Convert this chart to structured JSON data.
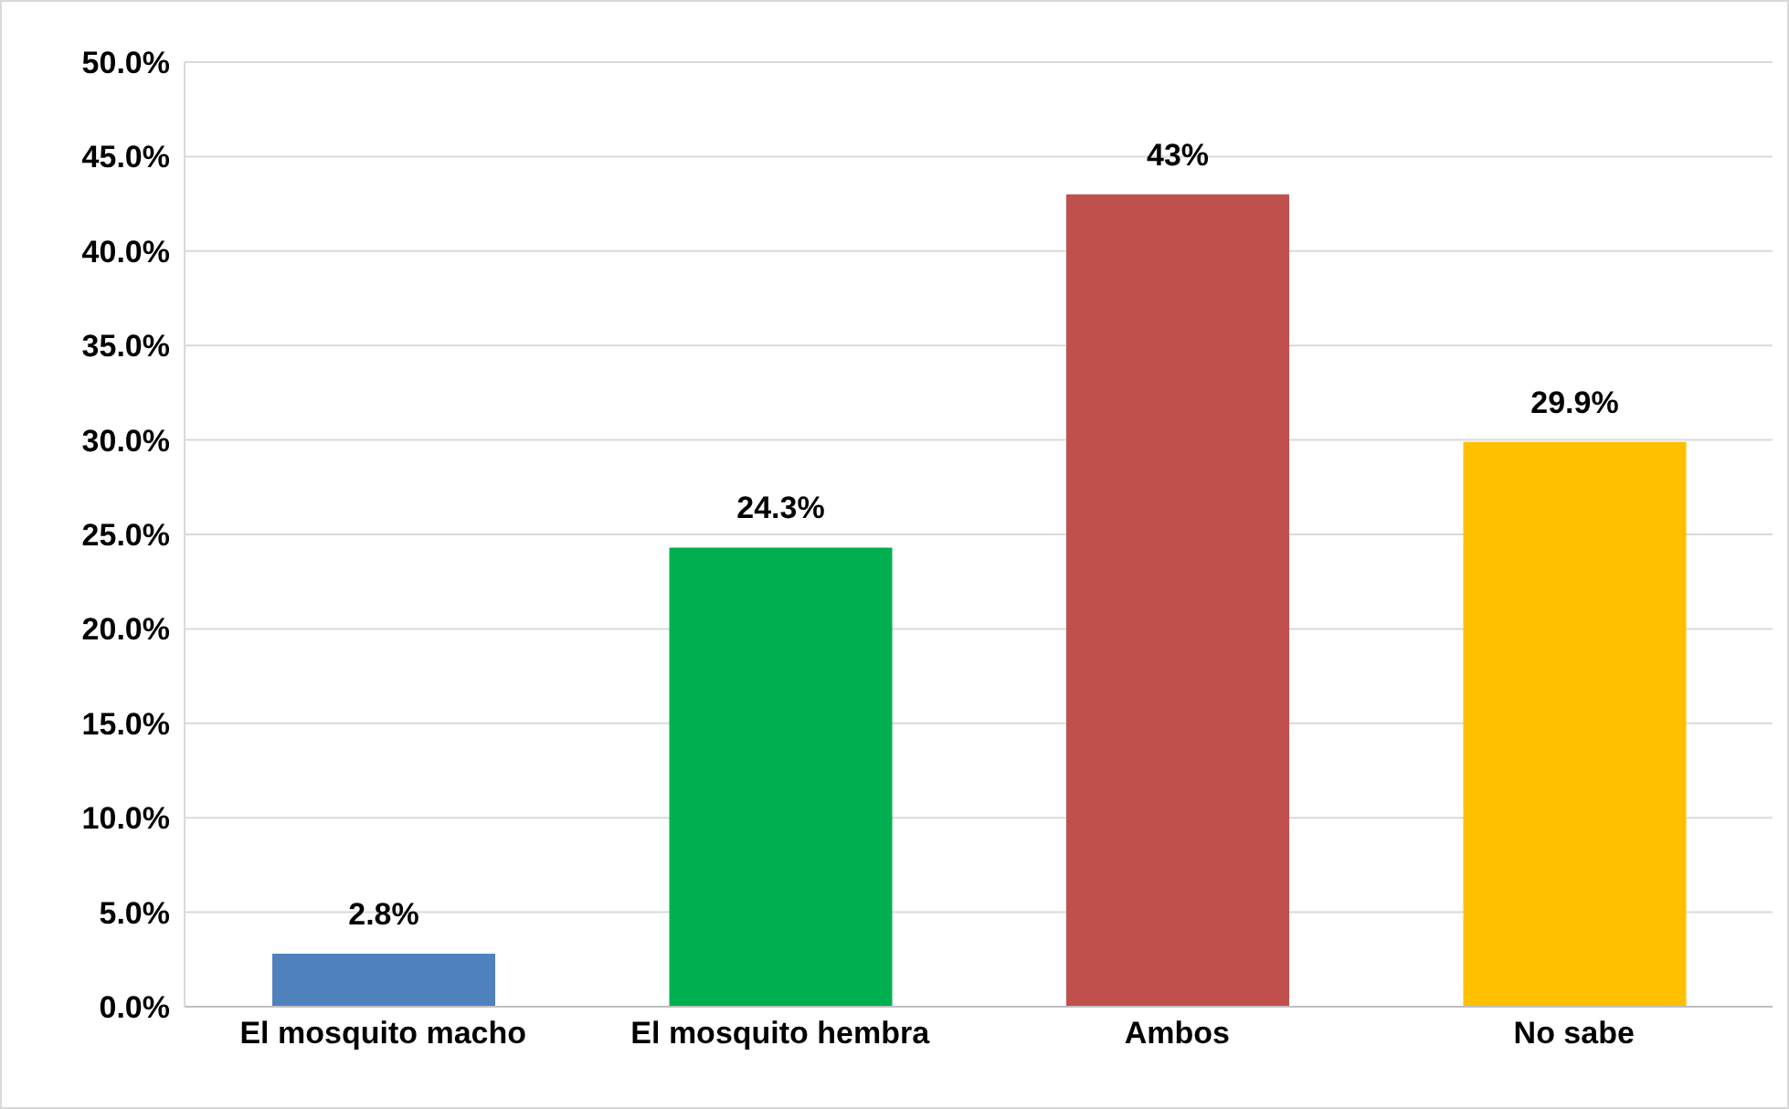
{
  "chart_data": {
    "type": "bar",
    "categories": [
      "El mosquito macho",
      "El mosquito hembra",
      "Ambos",
      "No sabe"
    ],
    "values": [
      2.8,
      24.3,
      43,
      29.9
    ],
    "colors": [
      "#4f81bd",
      "#00b050",
      "#c0504d",
      "#ffc000"
    ],
    "value_labels": [
      "2.8%",
      "24.3%",
      "43%",
      "29.9%"
    ],
    "ylim": [
      0,
      50
    ],
    "yticks": [
      {
        "value": 0,
        "label": "0.0%"
      },
      {
        "value": 5,
        "label": "5.0%"
      },
      {
        "value": 10,
        "label": "10.0%"
      },
      {
        "value": 15,
        "label": "15.0%"
      },
      {
        "value": 20,
        "label": "20.0%"
      },
      {
        "value": 25,
        "label": "25.0%"
      },
      {
        "value": 30,
        "label": "30.0%"
      },
      {
        "value": 35,
        "label": "35.0%"
      },
      {
        "value": 40,
        "label": "40.0%"
      },
      {
        "value": 45,
        "label": "45.0%"
      },
      {
        "value": 50,
        "label": "50.0%"
      }
    ],
    "grid": "y",
    "legend": false
  }
}
